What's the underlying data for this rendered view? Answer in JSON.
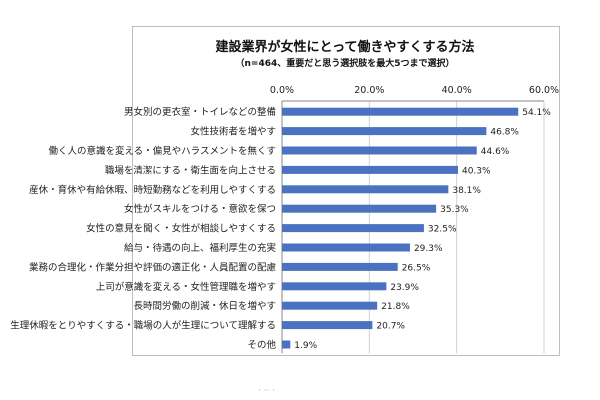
{
  "colors": {
    "bar": "#4a72c0",
    "grid": "#d0d0d0",
    "axis": "#8a8a8a"
  },
  "chart_data": {
    "type": "bar",
    "orientation": "horizontal",
    "title": "建設業界が女性にとって働きやすくする方法",
    "subtitle": "（n=464、重要だと思う選択肢を最大5つまで選択）",
    "categories": [
      "男女別の更衣室・トイレなどの整備",
      "女性技術者を増やす",
      "働く人の意識を変える・偏見やハラスメントを無くす",
      "職場を清潔にする・衛生面を向上させる",
      "産休・育休や有給休暇、時短勤務などを利用しやすくする",
      "女性がスキルをつける・意欲を保つ",
      "女性の意見を聞く・女性が相談しやすくする",
      "給与・待遇の向上、福利厚生の充実",
      "業務の合理化・作業分担や評価の適正化・人員配置の配慮",
      "上司が意識を変える・女性管理職を増やす",
      "長時間労働の削減・休日を増やす",
      "生理休暇をとりやすくする・職場の人が生理について理解する",
      "その他"
    ],
    "values": [
      54.1,
      46.8,
      44.6,
      40.3,
      38.1,
      35.3,
      32.5,
      29.3,
      26.5,
      23.9,
      21.8,
      20.7,
      1.9
    ],
    "data_labels": [
      "54.1%",
      "46.8%",
      "44.6%",
      "40.3%",
      "38.1%",
      "35.3%",
      "32.5%",
      "29.3%",
      "26.5%",
      "23.9%",
      "21.8%",
      "20.7%",
      "1.9%"
    ],
    "xlim": [
      0,
      60
    ],
    "ticks": [
      0,
      20,
      40,
      60
    ],
    "tick_labels": [
      "0.0%",
      "20.0%",
      "40.0%",
      "60.0%"
    ],
    "axis_position": "top",
    "grid": true,
    "legend": "none"
  },
  "footer_mark": "· ·· ·"
}
